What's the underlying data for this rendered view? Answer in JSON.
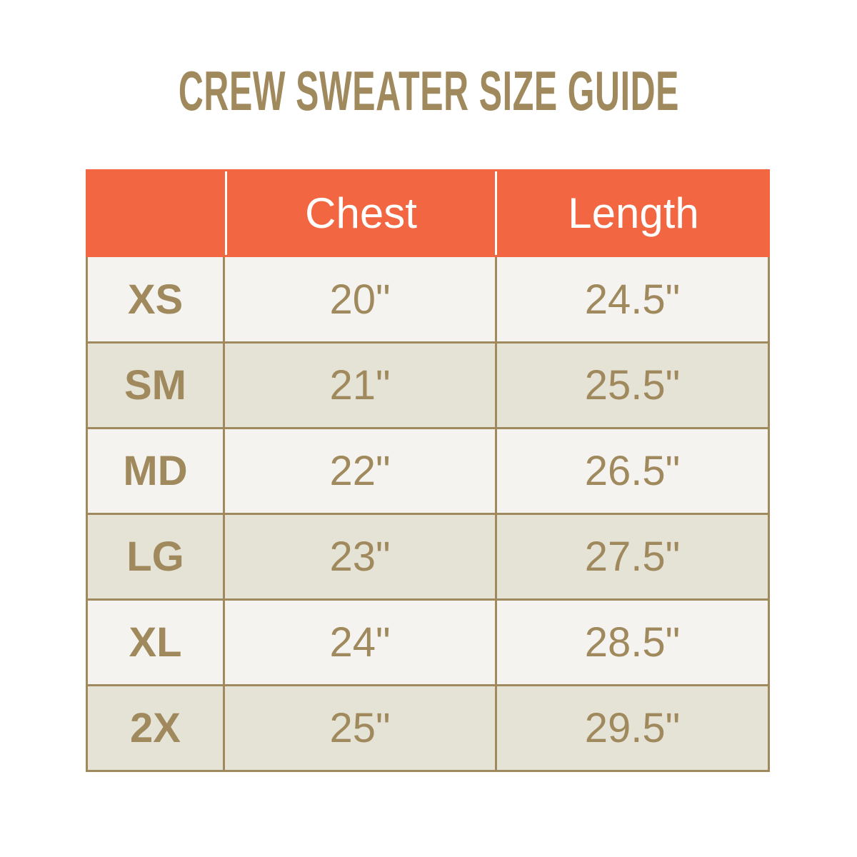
{
  "title": "CREW SWEATER SIZE GUIDE",
  "colors": {
    "header": "#f26641",
    "text": "#a08a5d",
    "row_light": "#f4f3ef",
    "row_dark": "#e5e2d6"
  },
  "table": {
    "headers": [
      "",
      "Chest",
      "Length"
    ],
    "rows": [
      [
        "XS",
        "20\"",
        "24.5\""
      ],
      [
        "SM",
        "21\"",
        "25.5\""
      ],
      [
        "MD",
        "22\"",
        "26.5\""
      ],
      [
        "LG",
        "23\"",
        "27.5\""
      ],
      [
        "XL",
        "24\"",
        "28.5\""
      ],
      [
        "2X",
        "25\"",
        "29.5\""
      ]
    ]
  }
}
